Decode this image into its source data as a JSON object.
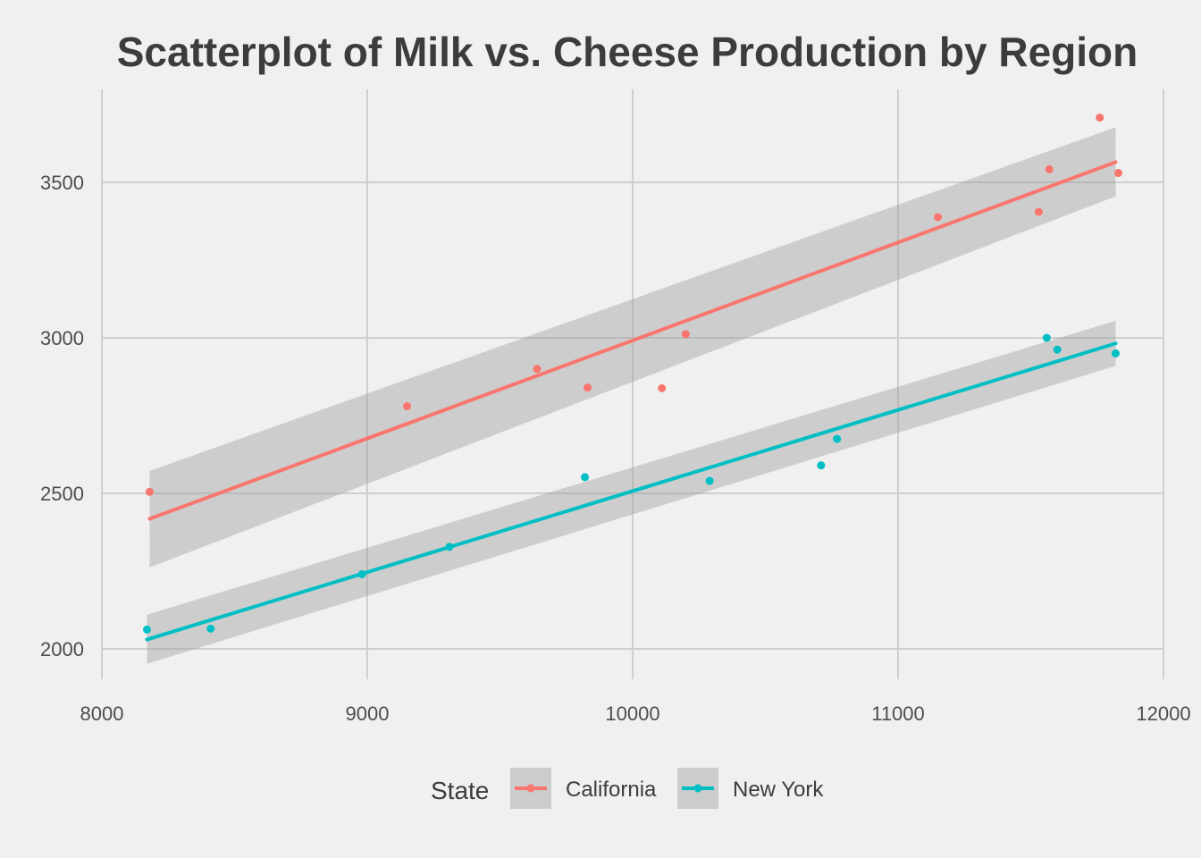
{
  "chart_data": {
    "type": "scatter",
    "title": "Scatterplot of Milk vs. Cheese Production by Region",
    "xlabel": "",
    "ylabel": "",
    "xlim": [
      8000,
      12000
    ],
    "ylim": [
      1950,
      3750
    ],
    "x_ticks": [
      8000,
      9000,
      10000,
      11000,
      12000
    ],
    "y_ticks": [
      2000,
      2500,
      3000,
      3500
    ],
    "grid": true,
    "legend_title": "State",
    "legend_position": "bottom",
    "series": [
      {
        "name": "California",
        "color": "#f8766d",
        "points": [
          {
            "x": 8180,
            "y": 2505
          },
          {
            "x": 9150,
            "y": 2780
          },
          {
            "x": 9640,
            "y": 2900
          },
          {
            "x": 9830,
            "y": 2840
          },
          {
            "x": 10110,
            "y": 2838
          },
          {
            "x": 10200,
            "y": 3012
          },
          {
            "x": 11150,
            "y": 3388
          },
          {
            "x": 11530,
            "y": 3405
          },
          {
            "x": 11570,
            "y": 3542
          },
          {
            "x": 11760,
            "y": 3708
          },
          {
            "x": 11830,
            "y": 3530
          }
        ],
        "fit": {
          "x": [
            8180,
            11820
          ],
          "y": [
            2418,
            3565
          ],
          "ci_lower": [
            2262,
            3455
          ],
          "ci_upper": [
            2572,
            3677
          ]
        }
      },
      {
        "name": "New York",
        "color": "#00bfc4",
        "points": [
          {
            "x": 8170,
            "y": 2062
          },
          {
            "x": 8410,
            "y": 2065
          },
          {
            "x": 8980,
            "y": 2240
          },
          {
            "x": 9310,
            "y": 2328
          },
          {
            "x": 9820,
            "y": 2552
          },
          {
            "x": 10290,
            "y": 2540
          },
          {
            "x": 10710,
            "y": 2590
          },
          {
            "x": 10770,
            "y": 2675
          },
          {
            "x": 11560,
            "y": 3000
          },
          {
            "x": 11600,
            "y": 2962
          },
          {
            "x": 11820,
            "y": 2950
          }
        ],
        "fit": {
          "x": [
            8170,
            11820
          ],
          "y": [
            2030,
            2982
          ],
          "ci_lower": [
            1952,
            2910
          ],
          "ci_upper": [
            2110,
            3055
          ]
        }
      }
    ]
  }
}
